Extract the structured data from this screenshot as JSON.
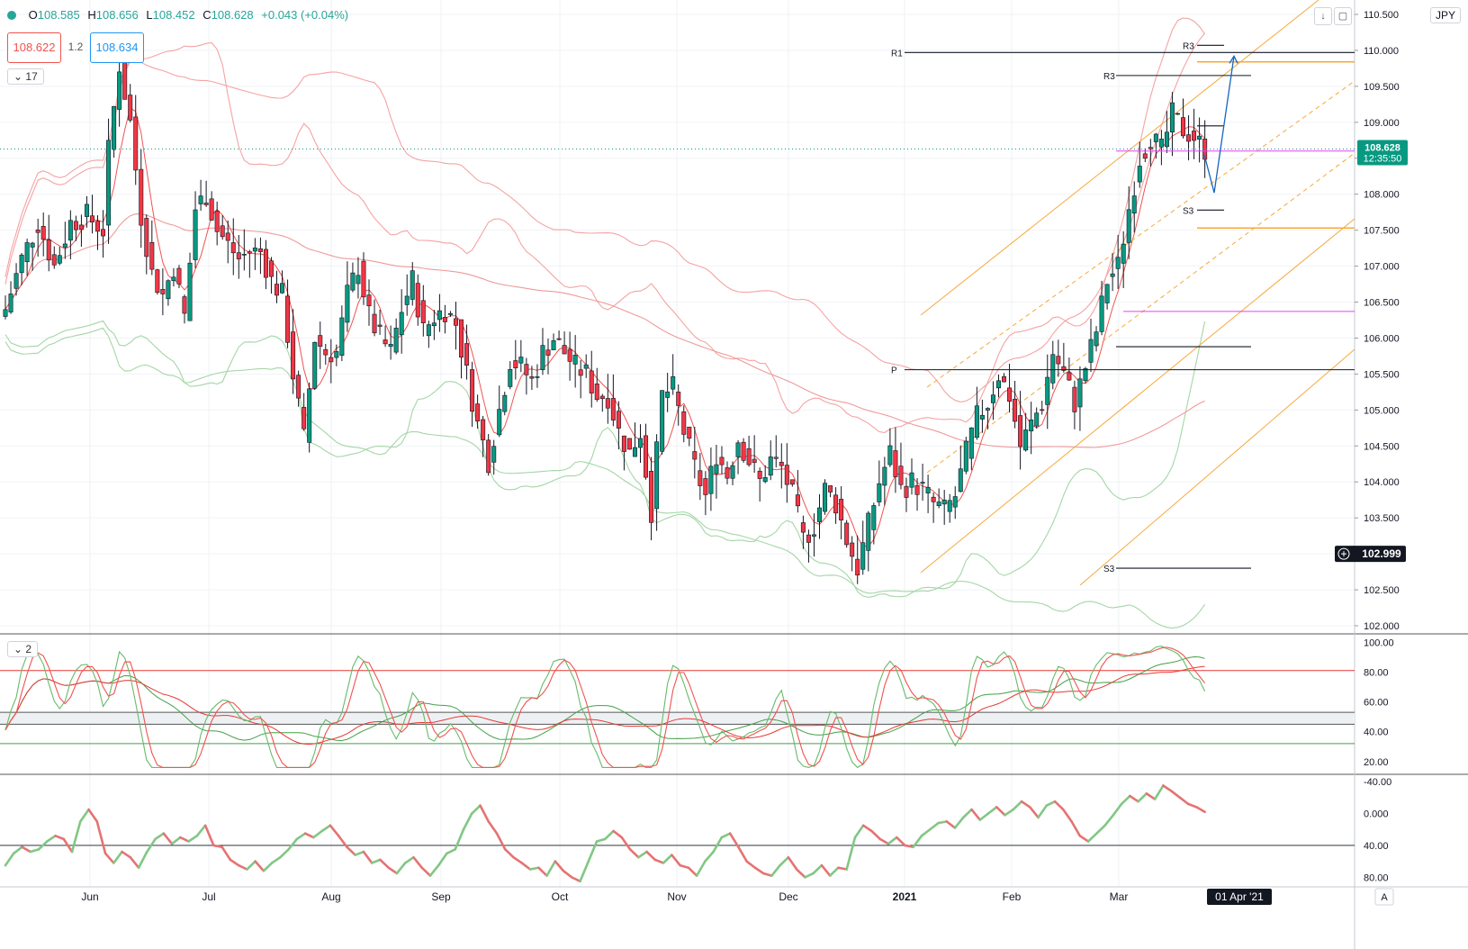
{
  "header": {
    "o_label": "O",
    "o": "108.585",
    "h_label": "H",
    "h": "108.656",
    "l_label": "L",
    "l": "108.452",
    "c_label": "C",
    "c": "108.628",
    "change": "+0.043 (+0.04%)"
  },
  "trade": {
    "sell": "108.622",
    "spread": "1.2",
    "buy": "108.634"
  },
  "indicators": {
    "main_count": "17",
    "osc_count": "2"
  },
  "currency": "JPY",
  "price_tag": {
    "value": "108.628",
    "countdown": "12:35:50"
  },
  "cursor_price": "102.999",
  "date_tag": "01 Apr '21",
  "corner_label": "A",
  "colors": {
    "up": "#26a69a",
    "down": "#ef5350",
    "bull": "#089981",
    "bear": "#f23645",
    "orange": "#f7a83a",
    "magenta": "#e040fb",
    "accent": "#2196f3"
  },
  "chart_data": [
    {
      "type": "candlestick",
      "title": "",
      "x_labels": [
        "Jun",
        "Jul",
        "Aug",
        "Sep",
        "Oct",
        "Nov",
        "Dec",
        "2021",
        "Feb",
        "Mar"
      ],
      "y_ticks": [
        102.0,
        102.5,
        103.0,
        103.5,
        104.0,
        104.5,
        105.0,
        105.5,
        106.0,
        106.5,
        107.0,
        107.5,
        108.0,
        108.5,
        109.0,
        109.5,
        110.0,
        110.5
      ],
      "y_tick_labels": [
        "102.000",
        "102.500",
        "103.000",
        "103.500",
        "104.000",
        "104.500",
        "105.000",
        "105.500",
        "106.000",
        "106.500",
        "107.000",
        "107.500",
        "108.000",
        "108.500",
        "109.000",
        "109.500",
        "110.000",
        "110.500"
      ],
      "ylim": [
        101.9,
        110.7
      ],
      "close_path": [
        [
          0,
          106.4
        ],
        [
          3,
          107.1
        ],
        [
          6,
          107.6
        ],
        [
          9,
          107.0
        ],
        [
          12,
          107.6
        ],
        [
          15,
          107.7
        ],
        [
          18,
          107.5
        ],
        [
          19,
          108.6
        ],
        [
          21,
          109.8
        ],
        [
          23,
          109.0
        ],
        [
          25,
          107.7
        ],
        [
          27,
          106.9
        ],
        [
          29,
          106.6
        ],
        [
          31,
          107.0
        ],
        [
          33,
          106.3
        ],
        [
          35,
          107.8
        ],
        [
          37,
          108.0
        ],
        [
          39,
          107.5
        ],
        [
          41,
          107.3
        ],
        [
          43,
          107.1
        ],
        [
          45,
          107.2
        ],
        [
          47,
          107.2
        ],
        [
          49,
          106.8
        ],
        [
          51,
          106.6
        ],
        [
          53,
          105.5
        ],
        [
          55,
          104.6
        ],
        [
          57,
          106.0
        ],
        [
          59,
          105.8
        ],
        [
          61,
          105.8
        ],
        [
          63,
          106.6
        ],
        [
          65,
          107.0
        ],
        [
          67,
          106.3
        ],
        [
          69,
          106.0
        ],
        [
          71,
          105.8
        ],
        [
          73,
          106.4
        ],
        [
          75,
          106.8
        ],
        [
          77,
          106.1
        ],
        [
          79,
          106.3
        ],
        [
          81,
          106.4
        ],
        [
          83,
          106.2
        ],
        [
          85,
          105.5
        ],
        [
          87,
          104.8
        ],
        [
          89,
          104.3
        ],
        [
          91,
          105.0
        ],
        [
          93,
          105.7
        ],
        [
          95,
          105.6
        ],
        [
          97,
          105.4
        ],
        [
          99,
          105.8
        ],
        [
          101,
          106.0
        ],
        [
          103,
          105.8
        ],
        [
          105,
          105.6
        ],
        [
          107,
          105.5
        ],
        [
          109,
          105.2
        ],
        [
          111,
          105.2
        ],
        [
          113,
          104.7
        ],
        [
          115,
          104.4
        ],
        [
          117,
          104.7
        ],
        [
          119,
          103.6
        ],
        [
          121,
          105.2
        ],
        [
          123,
          105.3
        ],
        [
          125,
          104.7
        ],
        [
          127,
          104.2
        ],
        [
          129,
          103.8
        ],
        [
          131,
          104.4
        ],
        [
          133,
          104.1
        ],
        [
          135,
          104.6
        ],
        [
          137,
          104.3
        ],
        [
          139,
          104.0
        ],
        [
          141,
          104.3
        ],
        [
          143,
          104.2
        ],
        [
          145,
          103.8
        ],
        [
          147,
          103.2
        ],
        [
          149,
          103.4
        ],
        [
          151,
          103.9
        ],
        [
          153,
          103.7
        ],
        [
          155,
          103.2
        ],
        [
          157,
          102.8
        ],
        [
          159,
          103.4
        ],
        [
          161,
          104.0
        ],
        [
          163,
          104.4
        ],
        [
          165,
          103.9
        ],
        [
          167,
          104.0
        ],
        [
          169,
          103.9
        ],
        [
          171,
          103.7
        ],
        [
          173,
          103.6
        ],
        [
          175,
          103.8
        ],
        [
          177,
          104.4
        ],
        [
          179,
          104.9
        ],
        [
          181,
          105.1
        ],
        [
          183,
          105.5
        ],
        [
          185,
          105.2
        ],
        [
          187,
          104.5
        ],
        [
          189,
          104.8
        ],
        [
          191,
          105.1
        ],
        [
          193,
          105.8
        ],
        [
          195,
          105.5
        ],
        [
          197,
          105.1
        ],
        [
          199,
          105.6
        ],
        [
          201,
          106.1
        ],
        [
          203,
          106.8
        ],
        [
          205,
          107.0
        ],
        [
          207,
          107.8
        ],
        [
          209,
          108.5
        ],
        [
          211,
          108.8
        ],
        [
          213,
          108.6
        ],
        [
          215,
          109.1
        ],
        [
          217,
          108.9
        ],
        [
          219,
          108.8
        ],
        [
          221,
          108.6
        ]
      ],
      "last_close": 108.628,
      "levels": [
        {
          "label": "R1",
          "value": 109.97
        },
        {
          "label": "R3",
          "value": 109.65
        },
        {
          "label": "R3",
          "value": 110.07
        },
        {
          "label": "P",
          "value": 105.56
        },
        {
          "label": "S3",
          "value": 107.78
        },
        {
          "label": "S3",
          "value": 102.8
        }
      ]
    },
    {
      "type": "line",
      "title": "",
      "y_ticks": [
        20,
        40,
        60,
        80,
        100
      ],
      "y_tick_labels": [
        "20.00",
        "40.00",
        "60.00",
        "80.00",
        "100.00"
      ],
      "ylim": [
        12,
        105
      ],
      "ref_lines": [
        81,
        53,
        45,
        32
      ]
    },
    {
      "type": "line",
      "title": "",
      "y_ticks": [
        -40,
        -20,
        0,
        20,
        40,
        60,
        80
      ],
      "y_tick_labels": [
        "-40.00",
        "0.000",
        "40.00",
        "80.00"
      ],
      "ylim": [
        -52,
        88
      ],
      "values": [
        -25,
        -10,
        -2,
        -8,
        -5,
        5,
        12,
        8,
        -8,
        30,
        45,
        30,
        -10,
        -22,
        -8,
        -15,
        -28,
        -8,
        8,
        15,
        2,
        10,
        5,
        12,
        25,
        0,
        -2,
        -18,
        -25,
        -30,
        -20,
        -32,
        -22,
        -15,
        -5,
        8,
        15,
        10,
        18,
        25,
        12,
        -2,
        -12,
        -8,
        -22,
        -18,
        -28,
        -35,
        -22,
        -15,
        -28,
        -38,
        -25,
        -10,
        -5,
        20,
        40,
        50,
        30,
        15,
        -5,
        -15,
        -22,
        -30,
        -28,
        -38,
        -20,
        -32,
        -40,
        -45,
        -20,
        5,
        8,
        18,
        10,
        -5,
        -15,
        -8,
        -18,
        -22,
        -12,
        -25,
        -28,
        -38,
        -20,
        -8,
        10,
        15,
        -2,
        -20,
        -28,
        -35,
        -38,
        -25,
        -15,
        -30,
        -40,
        -35,
        -25,
        -38,
        -28,
        -30,
        10,
        25,
        18,
        8,
        2,
        10,
        0,
        -2,
        12,
        20,
        28,
        30,
        22,
        35,
        45,
        32,
        40,
        48,
        38,
        45,
        55,
        48,
        35,
        50,
        55,
        45,
        30,
        12,
        5,
        15,
        25,
        38,
        52,
        62,
        55,
        65,
        58,
        75,
        68,
        60,
        52,
        48,
        42
      ]
    }
  ]
}
